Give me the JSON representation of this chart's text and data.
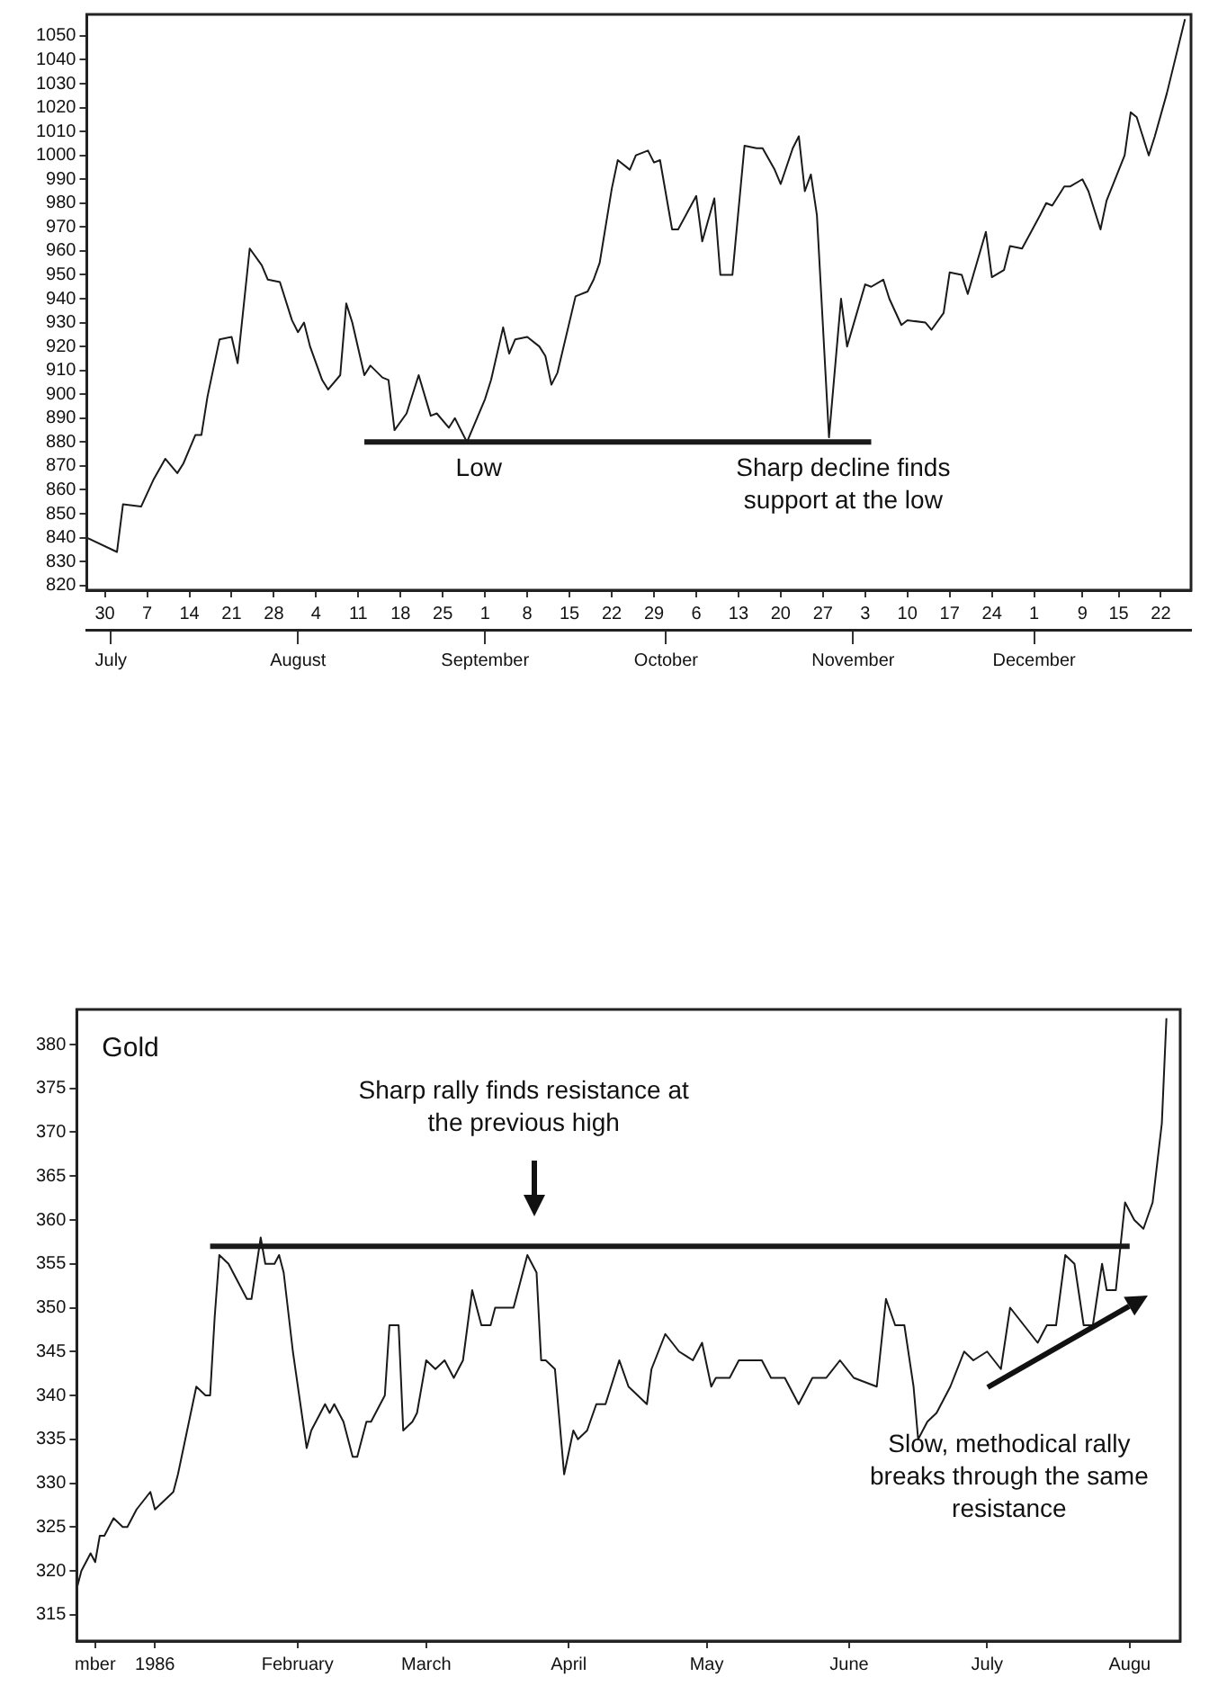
{
  "chart_data": [
    {
      "type": "line",
      "x": [
        "--06-27",
        "--07-02",
        "--07-03",
        "--07-06",
        "--07-08",
        "--07-10",
        "--07-12",
        "--07-13",
        "--07-15",
        "--07-16",
        "--07-17",
        "--07-19",
        "--07-21",
        "--07-22",
        "--07-24",
        "--07-26",
        "--07-27",
        "--07-29",
        "--07-31",
        "--08-01",
        "--08-02",
        "--08-03",
        "--08-05",
        "--08-06",
        "--08-08",
        "--08-09",
        "--08-10",
        "--08-12",
        "--08-13",
        "--08-15",
        "--08-16",
        "--08-17",
        "--08-19",
        "--08-20",
        "--08-21",
        "--08-23",
        "--08-24",
        "--08-26",
        "--08-27",
        "--08-29",
        "--09-01",
        "--09-02",
        "--09-04",
        "--09-05",
        "--09-06",
        "--09-08",
        "--09-10",
        "--09-11",
        "--09-12",
        "--09-13",
        "--09-16",
        "--09-18",
        "--09-19",
        "--09-20",
        "--09-22",
        "--09-23",
        "--09-25",
        "--09-26",
        "--09-28",
        "--09-29",
        "--09-30",
        "--10-02",
        "--10-03",
        "--10-06",
        "--10-07",
        "--10-09",
        "--10-10",
        "--10-12",
        "--10-14",
        "--10-16",
        "--10-17",
        "--10-19",
        "--10-20",
        "--10-22",
        "--10-23",
        "--10-24",
        "--10-25",
        "--10-26",
        "--10-28",
        "--10-30",
        "--10-31",
        "--11-03",
        "--11-04",
        "--11-06",
        "--11-07",
        "--11-09",
        "--11-10",
        "--11-13",
        "--11-14",
        "--11-16",
        "--11-17",
        "--11-19",
        "--11-20",
        "--11-23",
        "--11-24",
        "--11-26",
        "--11-27",
        "--11-29",
        "--12-02",
        "--12-03",
        "--12-04",
        "--12-06",
        "--12-07",
        "--12-09",
        "--12-10",
        "--12-12",
        "--12-13",
        "--12-16",
        "--12-17",
        "--12-18",
        "--12-20",
        "--12-21",
        "--12-23",
        "--12-26"
      ],
      "series": [
        {
          "color": "#1a1a1a",
          "values": [
            840,
            834,
            854,
            853,
            864,
            873,
            867,
            871,
            883,
            883,
            899,
            923,
            924,
            913,
            961,
            954,
            948,
            947,
            931,
            926,
            930,
            920,
            906,
            902,
            908,
            938,
            930,
            908,
            912,
            907,
            906,
            885,
            892,
            900,
            908,
            891,
            892,
            886,
            890,
            880,
            898,
            906,
            928,
            917,
            923,
            924,
            920,
            916,
            904,
            909,
            941,
            943,
            948,
            955,
            986,
            998,
            994,
            1000,
            1002,
            997,
            998,
            969,
            969,
            983,
            964,
            982,
            950,
            950,
            1004,
            1003,
            1003,
            994,
            988,
            1003,
            1008,
            985,
            992,
            975,
            882,
            940,
            920,
            946,
            945,
            948,
            940,
            929,
            931,
            930,
            927,
            934,
            951,
            950,
            942,
            968,
            949,
            952,
            962,
            961,
            975,
            980,
            979,
            987,
            987,
            990,
            985,
            969,
            981,
            1000,
            1018,
            1016,
            1000,
            1008,
            1026,
            1057
          ]
        },
        {
          "color": "#1a1a1a",
          "x": [
            "--08-12",
            "--11-04"
          ],
          "values": [
            880,
            880
          ]
        }
      ],
      "xlim": [
        "--06-27",
        "--12-27"
      ],
      "xticks": [
        {
          "value": "--06-30",
          "label": "30"
        },
        {
          "value": "--07-07",
          "label": "7"
        },
        {
          "value": "--07-14",
          "label": "14"
        },
        {
          "value": "--07-21",
          "label": "21"
        },
        {
          "value": "--07-28",
          "label": "28"
        },
        {
          "value": "--08-04",
          "label": "4"
        },
        {
          "value": "--08-11",
          "label": "11"
        },
        {
          "value": "--08-18",
          "label": "18"
        },
        {
          "value": "--08-25",
          "label": "25"
        },
        {
          "value": "--09-01",
          "label": "1"
        },
        {
          "value": "--09-08",
          "label": "8"
        },
        {
          "value": "--09-15",
          "label": "15"
        },
        {
          "value": "--09-22",
          "label": "22"
        },
        {
          "value": "--09-29",
          "label": "29"
        },
        {
          "value": "--10-06",
          "label": "6"
        },
        {
          "value": "--10-13",
          "label": "13"
        },
        {
          "value": "--10-20",
          "label": "20"
        },
        {
          "value": "--10-27",
          "label": "27"
        },
        {
          "value": "--11-03",
          "label": "3"
        },
        {
          "value": "--11-10",
          "label": "10"
        },
        {
          "value": "--11-17",
          "label": "17"
        },
        {
          "value": "--11-24",
          "label": "24"
        },
        {
          "value": "--12-01",
          "label": "1"
        },
        {
          "value": "--12-09",
          "label": "9"
        },
        {
          "value": "--12-15",
          "label": "15"
        },
        {
          "value": "--12-22",
          "label": "22"
        }
      ],
      "x2lim": [
        "--06-27",
        "--12-27"
      ],
      "x2ticks": [
        {
          "value": "--07-01",
          "label": "July"
        },
        {
          "value": "--08-01",
          "label": "August"
        },
        {
          "value": "--09-01",
          "label": "September"
        },
        {
          "value": "--10-01",
          "label": "October"
        },
        {
          "value": "--11-01",
          "label": "November"
        },
        {
          "value": "--12-01",
          "label": "December"
        }
      ],
      "ylim": [
        818,
        1059
      ],
      "yticks": [
        820,
        830,
        840,
        850,
        860,
        870,
        880,
        890,
        900,
        910,
        920,
        930,
        940,
        950,
        960,
        970,
        980,
        990,
        1000,
        1010,
        1020,
        1030,
        1040,
        1050
      ],
      "annotations": [
        "Low",
        "Sharp decline finds support at the low"
      ]
    },
    {
      "type": "line",
      "title": "Gold",
      "x": [
        "1985-12-15",
        "1985-12-16",
        "1985-12-18",
        "1985-12-19",
        "1985-12-20",
        "1985-12-21",
        "1985-12-23",
        "1985-12-25",
        "1985-12-26",
        "1985-12-28",
        "1985-12-31",
        "1986-01-01",
        "1986-01-03",
        "1986-01-05",
        "1986-01-06",
        "1986-01-08",
        "1986-01-10",
        "1986-01-12",
        "1986-01-13",
        "1986-01-14",
        "1986-01-15",
        "1986-01-17",
        "1986-01-18",
        "1986-01-21",
        "1986-01-22",
        "1986-01-24",
        "1986-01-25",
        "1986-01-27",
        "1986-01-28",
        "1986-01-29",
        "1986-01-31",
        "1986-02-03",
        "1986-02-04",
        "1986-02-07",
        "1986-02-08",
        "1986-02-09",
        "1986-02-11",
        "1986-02-13",
        "1986-02-14",
        "1986-02-16",
        "1986-02-17",
        "1986-02-20",
        "1986-02-21",
        "1986-02-23",
        "1986-02-24",
        "1986-02-26",
        "1986-02-27",
        "1986-03-01",
        "1986-03-03",
        "1986-03-05",
        "1986-03-07",
        "1986-03-09",
        "1986-03-11",
        "1986-03-13",
        "1986-03-15",
        "1986-03-16",
        "1986-03-20",
        "1986-03-23",
        "1986-03-25",
        "1986-03-26",
        "1986-03-27",
        "1986-03-29",
        "1986-03-31",
        "1986-04-02",
        "1986-04-03",
        "1986-04-05",
        "1986-04-07",
        "1986-04-09",
        "1986-04-12",
        "1986-04-14",
        "1986-04-18",
        "1986-04-19",
        "1986-04-22",
        "1986-04-25",
        "1986-04-28",
        "1986-04-30",
        "1986-05-02",
        "1986-05-03",
        "1986-05-06",
        "1986-05-08",
        "1986-05-13",
        "1986-05-15",
        "1986-05-18",
        "1986-05-21",
        "1986-05-24",
        "1986-05-27",
        "1986-05-30",
        "1986-06-02",
        "1986-06-07",
        "1986-06-09",
        "1986-06-11",
        "1986-06-13",
        "1986-06-15",
        "1986-06-16",
        "1986-06-18",
        "1986-06-20",
        "1986-06-23",
        "1986-06-26",
        "1986-06-28",
        "1986-07-01",
        "1986-07-04",
        "1986-07-06",
        "1986-07-09",
        "1986-07-12",
        "1986-07-14",
        "1986-07-16",
        "1986-07-18",
        "1986-07-20",
        "1986-07-22",
        "1986-07-24",
        "1986-07-26",
        "1986-07-27",
        "1986-07-29",
        "1986-07-31",
        "1986-08-02",
        "1986-08-04",
        "1986-08-06",
        "1986-08-08",
        "1986-08-09"
      ],
      "series": [
        {
          "color": "#1a1a1a",
          "values": [
            318,
            320,
            322,
            321,
            324,
            324,
            326,
            325,
            325,
            327,
            329,
            327,
            328,
            329,
            331,
            336,
            341,
            340,
            340,
            349,
            356,
            355,
            354,
            351,
            351,
            358,
            355,
            355,
            356,
            354,
            345,
            334,
            336,
            339,
            338,
            339,
            337,
            333,
            333,
            337,
            337,
            340,
            348,
            348,
            336,
            337,
            338,
            344,
            343,
            344,
            342,
            344,
            352,
            348,
            348,
            350,
            350,
            356,
            354,
            344,
            344,
            343,
            331,
            336,
            335,
            336,
            339,
            339,
            344,
            341,
            339,
            343,
            347,
            345,
            344,
            346,
            341,
            342,
            342,
            344,
            344,
            342,
            342,
            339,
            342,
            342,
            344,
            342,
            341,
            351,
            348,
            348,
            341,
            335,
            337,
            338,
            341,
            345,
            344,
            345,
            343,
            350,
            348,
            346,
            348,
            348,
            356,
            355,
            348,
            348,
            355,
            352,
            352,
            362,
            360,
            359,
            362,
            371,
            383
          ]
        },
        {
          "color": "#1a1a1a",
          "x": [
            "1986-01-13",
            "1986-08-01"
          ],
          "values": [
            357,
            357
          ]
        }
      ],
      "xlim": [
        "1985-12-15",
        "1986-08-12"
      ],
      "xticks": [
        {
          "value": "1985-12-19",
          "label": "mber"
        },
        {
          "value": "1986-01-01",
          "label": "1986"
        },
        {
          "value": "1986-02-01",
          "label": "February"
        },
        {
          "value": "1986-03-01",
          "label": "March"
        },
        {
          "value": "1986-04-01",
          "label": "April"
        },
        {
          "value": "1986-05-01",
          "label": "May"
        },
        {
          "value": "1986-06-01",
          "label": "June"
        },
        {
          "value": "1986-07-01",
          "label": "July"
        },
        {
          "value": "1986-08-01",
          "label": "Augu"
        }
      ],
      "ylim": [
        312,
        384
      ],
      "yticks": [
        315,
        320,
        325,
        330,
        335,
        340,
        345,
        350,
        355,
        360,
        365,
        370,
        375,
        380
      ],
      "annotations": [
        "Sharp rally finds resistance at the previous high",
        "Slow, methodical rally breaks through the same resistance"
      ]
    }
  ]
}
